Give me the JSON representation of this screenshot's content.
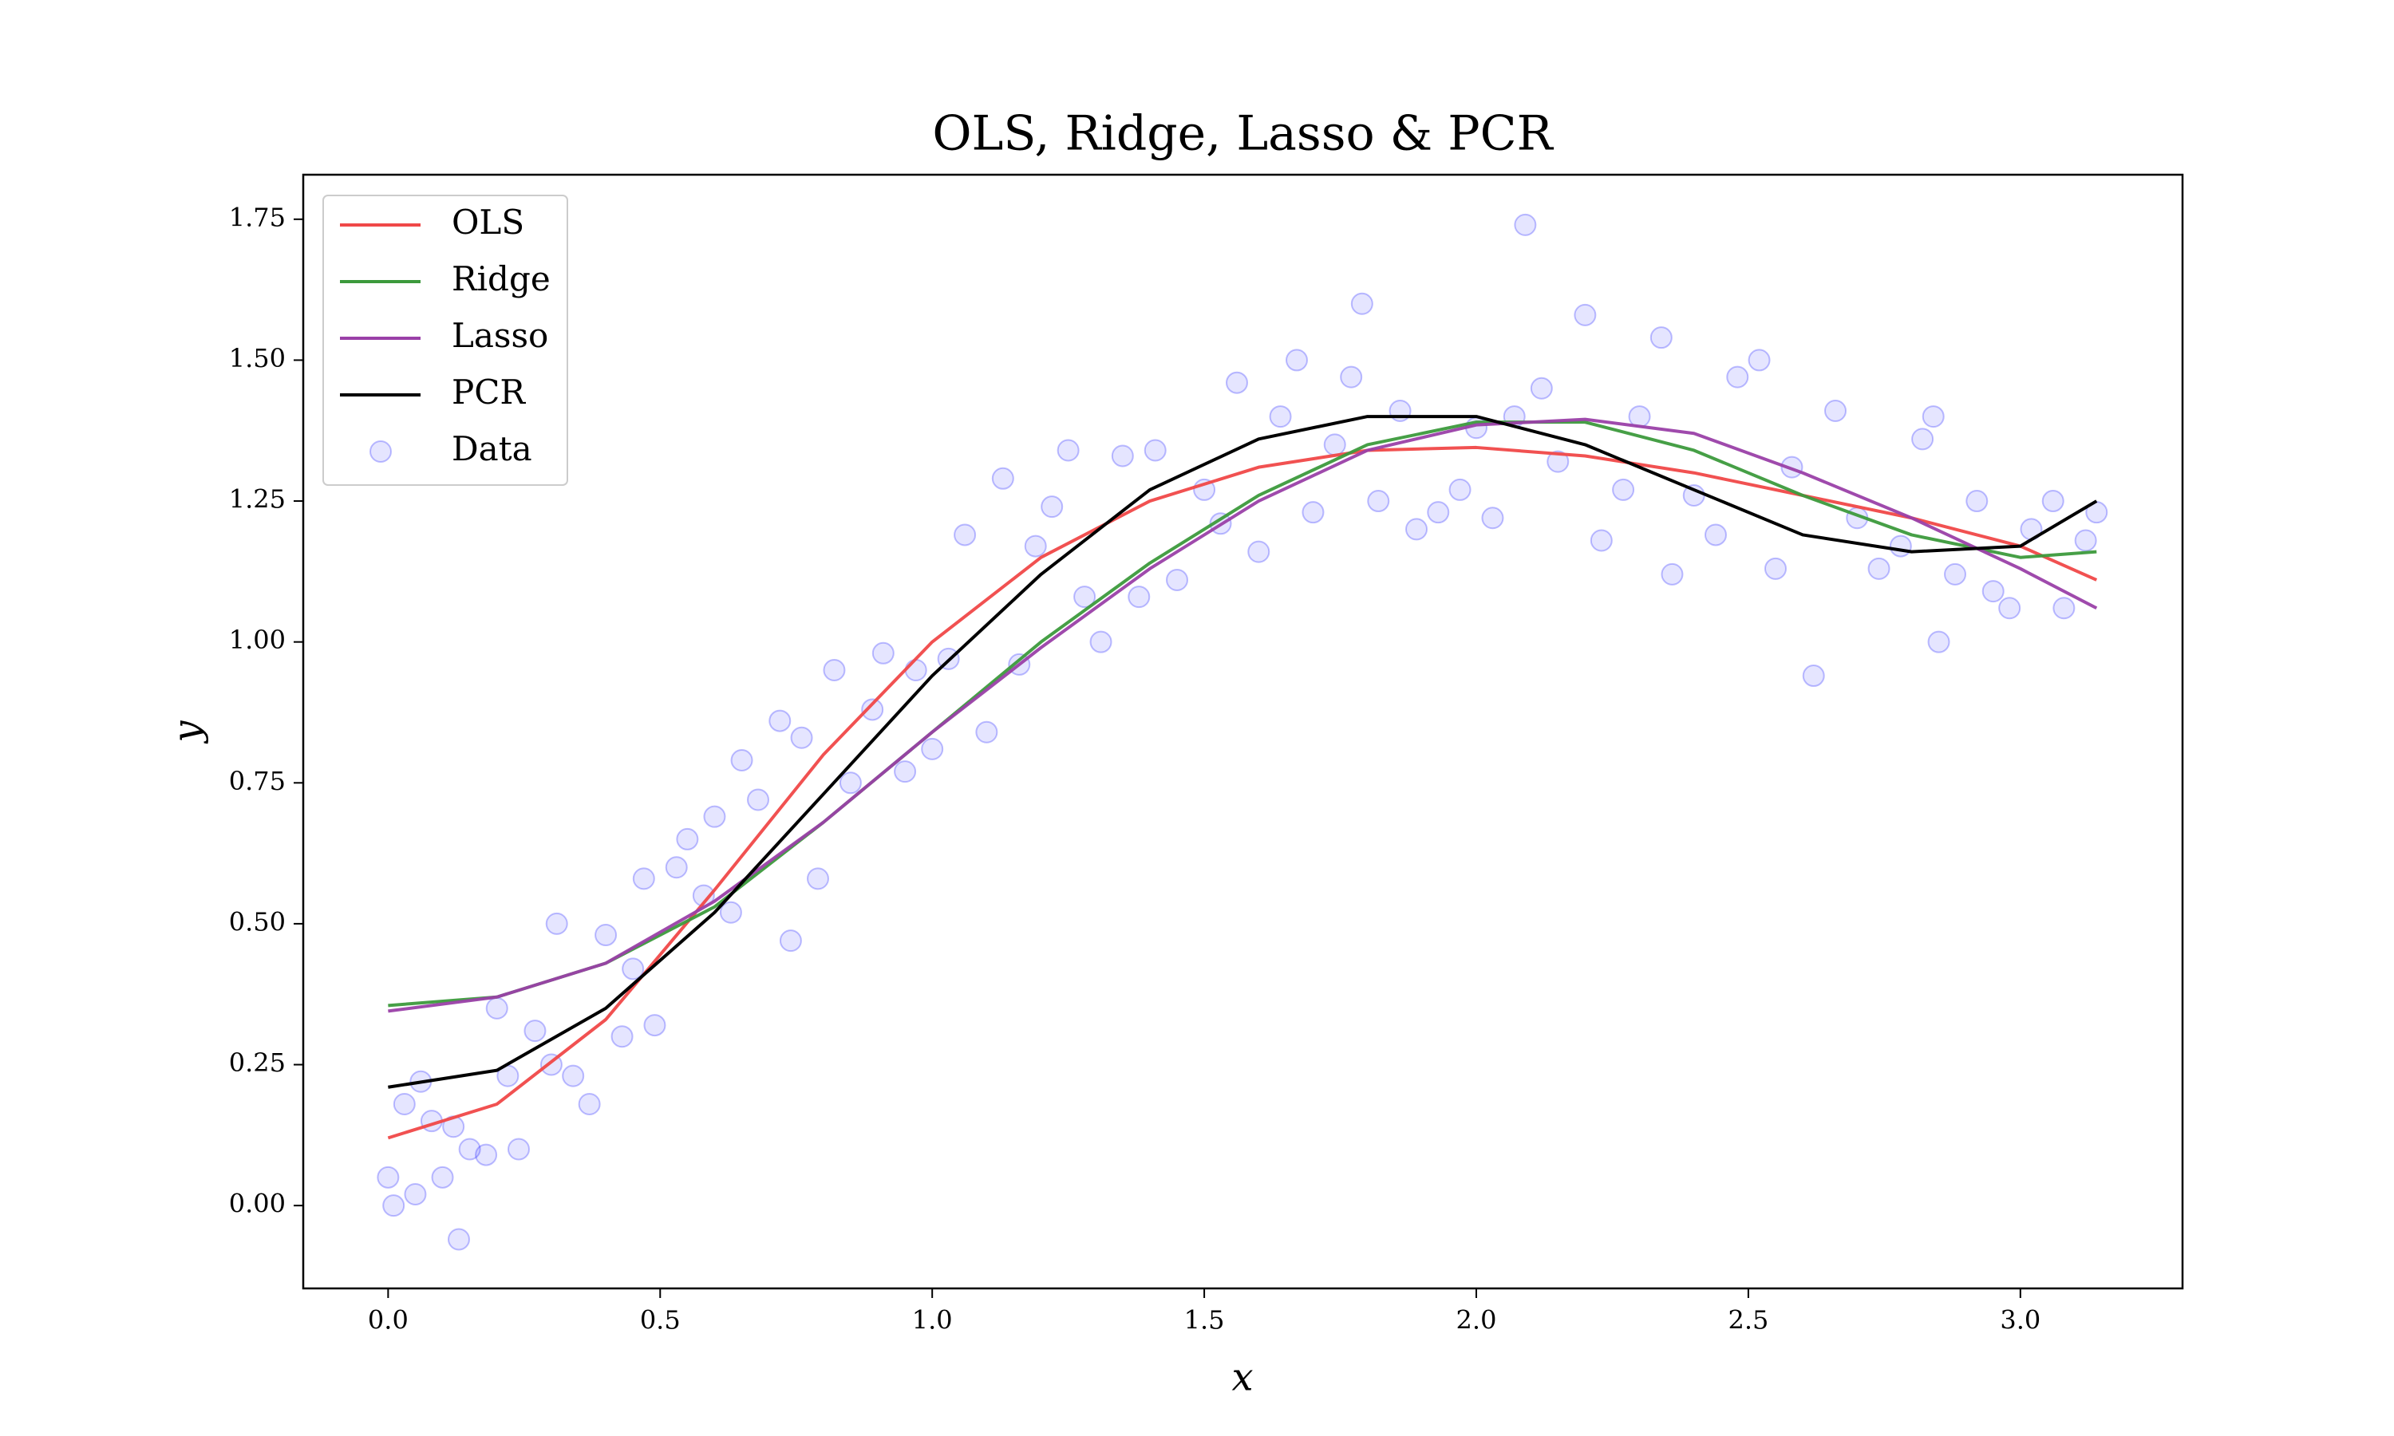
{
  "chart_data": {
    "type": "line",
    "title": "OLS, Ridge, Lasso & PCR",
    "xlabel": "x",
    "ylabel": "y",
    "xlim": [
      -0.156,
      3.298
    ],
    "ylim": [
      -0.147,
      1.829
    ],
    "xticks": [
      {
        "value": 0,
        "label": "0.0"
      },
      0.5,
      {
        "value": 1,
        "label": "1.0"
      },
      1.5,
      {
        "value": 2,
        "label": "2.0"
      },
      2.5,
      {
        "value": 3,
        "label": "3.0"
      }
    ],
    "yticks": [
      {
        "value": 0,
        "label": "0.00"
      },
      0.25,
      {
        "value": 0.5,
        "label": "0.50"
      },
      0.75,
      {
        "value": 1,
        "label": "1.00"
      },
      1.25,
      {
        "value": 1.5,
        "label": "1.50"
      },
      1.75
    ],
    "legend": "upper left",
    "x": [
      0,
      0.2,
      0.4,
      0.6,
      0.8,
      1.0,
      1.2,
      1.4,
      1.6,
      1.8,
      2.0,
      2.2,
      2.4,
      2.6,
      2.8,
      3.0,
      3.14
    ],
    "series": [
      {
        "name": "OLS",
        "color": "#f04848",
        "values": [
          0.12,
          0.18,
          0.33,
          0.56,
          0.8,
          1.0,
          1.15,
          1.25,
          1.31,
          1.34,
          1.345,
          1.33,
          1.3,
          1.26,
          1.22,
          1.17,
          1.11
        ]
      },
      {
        "name": "Ridge",
        "color": "#3c9a3c",
        "values": [
          0.355,
          0.37,
          0.43,
          0.53,
          0.68,
          0.84,
          1.0,
          1.14,
          1.26,
          1.35,
          1.39,
          1.39,
          1.34,
          1.26,
          1.19,
          1.15,
          1.16
        ]
      },
      {
        "name": "Lasso",
        "color": "#9a40a8",
        "values": [
          0.345,
          0.37,
          0.43,
          0.54,
          0.68,
          0.84,
          0.99,
          1.13,
          1.25,
          1.34,
          1.385,
          1.395,
          1.37,
          1.3,
          1.22,
          1.13,
          1.06
        ]
      },
      {
        "name": "PCR",
        "color": "#000000",
        "values": [
          0.21,
          0.24,
          0.35,
          0.52,
          0.73,
          0.94,
          1.12,
          1.27,
          1.36,
          1.4,
          1.4,
          1.35,
          1.27,
          1.19,
          1.16,
          1.17,
          1.25
        ]
      },
      {
        "name": "Data",
        "type": "scatter",
        "color": "#0000ff",
        "x": [
          0,
          0.01,
          0.03,
          0.05,
          0.06,
          0.08,
          0.1,
          0.12,
          0.13,
          0.15,
          0.18,
          0.2,
          0.22,
          0.24,
          0.27,
          0.3,
          0.31,
          0.34,
          0.37,
          0.4,
          0.43,
          0.45,
          0.47,
          0.49,
          0.53,
          0.55,
          0.58,
          0.6,
          0.63,
          0.65,
          0.68,
          0.72,
          0.74,
          0.76,
          0.79,
          0.82,
          0.85,
          0.89,
          0.91,
          0.95,
          0.97,
          1.0,
          1.03,
          1.06,
          1.1,
          1.13,
          1.16,
          1.19,
          1.22,
          1.25,
          1.28,
          1.31,
          1.35,
          1.38,
          1.41,
          1.45,
          1.5,
          1.53,
          1.56,
          1.6,
          1.64,
          1.67,
          1.7,
          1.74,
          1.77,
          1.79,
          1.82,
          1.86,
          1.89,
          1.93,
          1.97,
          2.0,
          2.03,
          2.07,
          2.09,
          2.12,
          2.15,
          2.2,
          2.23,
          2.27,
          2.3,
          2.34,
          2.36,
          2.4,
          2.44,
          2.48,
          2.52,
          2.55,
          2.58,
          2.62,
          2.66,
          2.7,
          2.74,
          2.78,
          2.82,
          2.84,
          2.85,
          2.88,
          2.92,
          2.95,
          2.98,
          3.02,
          3.06,
          3.08,
          3.12,
          3.14
        ],
        "values": [
          0.05,
          0,
          0.18,
          0.02,
          0.22,
          0.15,
          0.05,
          0.14,
          -0.06,
          0.1,
          0.09,
          0.35,
          0.23,
          0.1,
          0.31,
          0.25,
          0.5,
          0.23,
          0.18,
          0.48,
          0.3,
          0.42,
          0.58,
          0.32,
          0.6,
          0.65,
          0.55,
          0.69,
          0.52,
          0.79,
          0.72,
          0.86,
          0.47,
          0.83,
          0.58,
          0.95,
          0.75,
          0.88,
          0.98,
          0.77,
          0.95,
          0.81,
          0.97,
          1.19,
          0.84,
          1.29,
          0.96,
          1.17,
          1.24,
          1.34,
          1.08,
          1.0,
          1.33,
          1.08,
          1.34,
          1.11,
          1.27,
          1.21,
          1.46,
          1.16,
          1.4,
          1.5,
          1.23,
          1.35,
          1.47,
          1.6,
          1.25,
          1.41,
          1.2,
          1.23,
          1.27,
          1.38,
          1.22,
          1.4,
          1.74,
          1.45,
          1.32,
          1.58,
          1.18,
          1.27,
          1.4,
          1.54,
          1.12,
          1.26,
          1.19,
          1.47,
          1.5,
          1.13,
          1.31,
          0.94,
          1.41,
          1.22,
          1.13,
          1.17,
          1.36,
          1.4,
          1.0,
          1.12,
          1.25,
          1.09,
          1.06,
          1.2,
          1.25,
          1.06,
          1.18,
          1.23
        ]
      }
    ]
  }
}
